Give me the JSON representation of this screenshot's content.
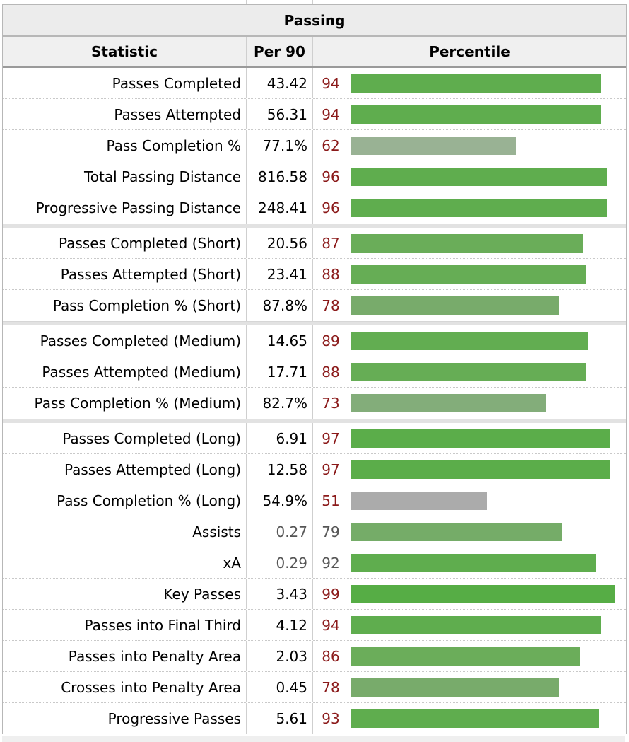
{
  "table": {
    "title": "Passing",
    "headers": {
      "statistic": "Statistic",
      "per90": "Per 90",
      "percentile": "Percentile"
    }
  },
  "groups": [
    [
      {
        "stat": "Passes Completed",
        "per90": "43.42",
        "pct": 94,
        "color": "#5fad4e",
        "gray": false
      },
      {
        "stat": "Passes Attempted",
        "per90": "56.31",
        "pct": 94,
        "color": "#5fad4e",
        "gray": false
      },
      {
        "stat": "Pass Completion %",
        "per90": "77.1%",
        "pct": 62,
        "color": "#99b294",
        "gray": false
      },
      {
        "stat": "Total Passing Distance",
        "per90": "816.58",
        "pct": 96,
        "color": "#5fad4e",
        "gray": false
      },
      {
        "stat": "Progressive Passing Distance",
        "per90": "248.41",
        "pct": 96,
        "color": "#5fad4e",
        "gray": false
      }
    ],
    [
      {
        "stat": "Passes Completed (Short)",
        "per90": "20.56",
        "pct": 87,
        "color": "#6aad59",
        "gray": false
      },
      {
        "stat": "Passes Attempted (Short)",
        "per90": "23.41",
        "pct": 88,
        "color": "#66ad55",
        "gray": false
      },
      {
        "stat": "Pass Completion % (Short)",
        "per90": "87.8%",
        "pct": 78,
        "color": "#78ab6b",
        "gray": false
      }
    ],
    [
      {
        "stat": "Passes Completed (Medium)",
        "per90": "14.65",
        "pct": 89,
        "color": "#62ad51",
        "gray": false
      },
      {
        "stat": "Passes Attempted (Medium)",
        "per90": "17.71",
        "pct": 88,
        "color": "#66ad55",
        "gray": false
      },
      {
        "stat": "Pass Completion % (Medium)",
        "per90": "82.7%",
        "pct": 73,
        "color": "#83ad7a",
        "gray": false
      }
    ],
    [
      {
        "stat": "Passes Completed (Long)",
        "per90": "6.91",
        "pct": 97,
        "color": "#5bad4a",
        "gray": false
      },
      {
        "stat": "Passes Attempted (Long)",
        "per90": "12.58",
        "pct": 97,
        "color": "#5bad4a",
        "gray": false
      },
      {
        "stat": "Pass Completion % (Long)",
        "per90": "54.9%",
        "pct": 51,
        "color": "#ababab",
        "gray": false
      },
      {
        "stat": "Assists",
        "per90": "0.27",
        "pct": 79,
        "color": "#75ac68",
        "gray": true
      },
      {
        "stat": "xA",
        "per90": "0.29",
        "pct": 92,
        "color": "#5fad4e",
        "gray": true
      },
      {
        "stat": "Key Passes",
        "per90": "3.43",
        "pct": 99,
        "color": "#56ad45",
        "gray": false
      },
      {
        "stat": "Passes into Final Third",
        "per90": "4.12",
        "pct": 94,
        "color": "#5fad4e",
        "gray": false
      },
      {
        "stat": "Passes into Penalty Area",
        "per90": "2.03",
        "pct": 86,
        "color": "#6bad5a",
        "gray": false
      },
      {
        "stat": "Crosses into Penalty Area",
        "per90": "0.45",
        "pct": 78,
        "color": "#78ab6b",
        "gray": false
      },
      {
        "stat": "Progressive Passes",
        "per90": "5.61",
        "pct": 93,
        "color": "#5fad4e",
        "gray": false
      }
    ]
  ]
}
